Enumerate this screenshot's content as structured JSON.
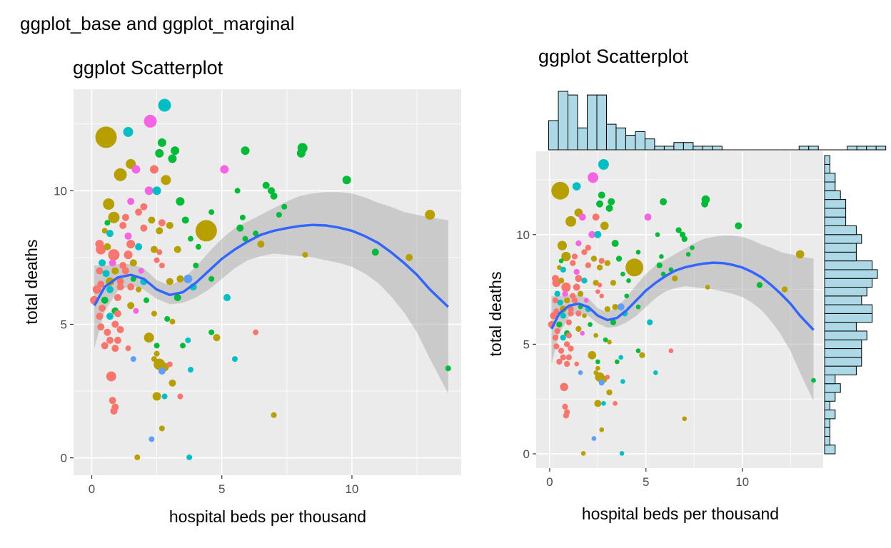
{
  "figure": {
    "title": "ggplot_base and ggplot_marginal"
  },
  "chart_data": [
    {
      "type": "scatter",
      "id": "base",
      "title": "ggplot Scatterplot",
      "xlabel": "hospital beds per thousand",
      "ylabel": "total deaths",
      "xlim": [
        -0.7,
        14.2
      ],
      "ylim": [
        -0.65,
        13.8
      ],
      "xticks": [
        0,
        5,
        10
      ],
      "yticks": [
        0,
        5,
        10
      ],
      "xtick_labels": [
        "0",
        "5",
        "10"
      ],
      "ytick_labels": [
        "0",
        "5",
        "10"
      ],
      "grid": true,
      "smooth": {
        "method": "loess",
        "color": "#3366FF",
        "ci_color": "#bfbfbf"
      }
    },
    {
      "type": "scatter",
      "id": "marginal",
      "title": "ggplot Scatterplot",
      "xlabel": "hospital beds per thousand",
      "ylabel": "total deaths",
      "xlim": [
        -0.7,
        14.2
      ],
      "ylim": [
        -0.65,
        13.8
      ],
      "xticks": [
        0,
        5,
        10
      ],
      "yticks": [
        0,
        5,
        10
      ],
      "xtick_labels": [
        "0",
        "5",
        "10"
      ],
      "ytick_labels": [
        "0",
        "5",
        "10"
      ],
      "grid": true,
      "marginal": "histogram",
      "hist_color": "#add8e6",
      "x_hist": {
        "bin_start": -0.05,
        "bin_width": 0.5,
        "counts": [
          8,
          16,
          15,
          6,
          15,
          15,
          7,
          6,
          4,
          5,
          3,
          1,
          1,
          2,
          2,
          1,
          1,
          1,
          0,
          0,
          0,
          0,
          0,
          0,
          0,
          0,
          1,
          1,
          0,
          0,
          0,
          1,
          1,
          1,
          1
        ]
      },
      "y_hist": {
        "bin_start": 0,
        "bin_width": 0.4,
        "counts": [
          2,
          1,
          1,
          1,
          2,
          1,
          2,
          3,
          2,
          6,
          7,
          7,
          7,
          8,
          6,
          9,
          9,
          7,
          8,
          9,
          10,
          9,
          6,
          6,
          7,
          6,
          4,
          4,
          4,
          3,
          2,
          2,
          1,
          1
        ]
      }
    }
  ],
  "points": [
    {
      "x": 0.55,
      "y": 12.0,
      "c": "#B79F00",
      "s": 15
    },
    {
      "x": 4.4,
      "y": 8.5,
      "c": "#B79F00",
      "s": 15
    },
    {
      "x": 2.8,
      "y": 13.2,
      "c": "#00BFC4",
      "s": 9
    },
    {
      "x": 2.25,
      "y": 12.6,
      "c": "#F564E3",
      "s": 9
    },
    {
      "x": 1.4,
      "y": 12.2,
      "c": "#00BFC4",
      "s": 7
    },
    {
      "x": 1.1,
      "y": 10.6,
      "c": "#B79F00",
      "s": 9
    },
    {
      "x": 0.65,
      "y": 9.5,
      "c": "#B79F00",
      "s": 8
    },
    {
      "x": 0.85,
      "y": 9.0,
      "c": "#B79F00",
      "s": 8
    },
    {
      "x": 13.0,
      "y": 9.1,
      "c": "#B79F00",
      "s": 7
    },
    {
      "x": 1.5,
      "y": 11.0,
      "c": "#B79F00",
      "s": 7
    },
    {
      "x": 1.7,
      "y": 10.8,
      "c": "#F564E3",
      "s": 6
    },
    {
      "x": 2.4,
      "y": 10.8,
      "c": "#F8766D",
      "s": 6
    },
    {
      "x": 2.6,
      "y": 11.4,
      "c": "#00BA38",
      "s": 6
    },
    {
      "x": 2.7,
      "y": 11.8,
      "c": "#00BA38",
      "s": 6
    },
    {
      "x": 3.2,
      "y": 11.5,
      "c": "#00BA38",
      "s": 6
    },
    {
      "x": 3.1,
      "y": 11.2,
      "c": "#00BA38",
      "s": 6
    },
    {
      "x": 2.85,
      "y": 10.4,
      "c": "#B79F00",
      "s": 7
    },
    {
      "x": 2.2,
      "y": 10.0,
      "c": "#F564E3",
      "s": 6
    },
    {
      "x": 2.5,
      "y": 10.0,
      "c": "#00BFC4",
      "s": 6
    },
    {
      "x": 3.4,
      "y": 9.6,
      "c": "#00BA38",
      "s": 6
    },
    {
      "x": 5.1,
      "y": 10.8,
      "c": "#F564E3",
      "s": 6
    },
    {
      "x": 5.9,
      "y": 11.5,
      "c": "#00BA38",
      "s": 6
    },
    {
      "x": 8.1,
      "y": 11.6,
      "c": "#00BA38",
      "s": 7
    },
    {
      "x": 8.05,
      "y": 11.4,
      "c": "#00BA38",
      "s": 6
    },
    {
      "x": 9.8,
      "y": 10.4,
      "c": "#00BA38",
      "s": 6
    },
    {
      "x": 5.6,
      "y": 10.0,
      "c": "#00BA38",
      "s": 4
    },
    {
      "x": 6.7,
      "y": 10.2,
      "c": "#00BA38",
      "s": 5
    },
    {
      "x": 6.9,
      "y": 10.0,
      "c": "#00BA38",
      "s": 5
    },
    {
      "x": 7.0,
      "y": 9.8,
      "c": "#00BA38",
      "s": 5
    },
    {
      "x": 7.4,
      "y": 9.4,
      "c": "#00BA38",
      "s": 4
    },
    {
      "x": 7.2,
      "y": 9.1,
      "c": "#00BA38",
      "s": 4
    },
    {
      "x": 4.6,
      "y": 9.2,
      "c": "#00BA38",
      "s": 4
    },
    {
      "x": 5.8,
      "y": 9.0,
      "c": "#00BA38",
      "s": 4
    },
    {
      "x": 5.7,
      "y": 8.6,
      "c": "#00BA38",
      "s": 5
    },
    {
      "x": 6.5,
      "y": 8.0,
      "c": "#B79F00",
      "s": 5
    },
    {
      "x": 6.3,
      "y": 8.4,
      "c": "#00BA38",
      "s": 4
    },
    {
      "x": 5.9,
      "y": 8.2,
      "c": "#00BA38",
      "s": 4
    },
    {
      "x": 3.8,
      "y": 8.2,
      "c": "#00BA38",
      "s": 4
    },
    {
      "x": 3.6,
      "y": 8.9,
      "c": "#00BA38",
      "s": 5
    },
    {
      "x": 2.3,
      "y": 8.9,
      "c": "#B79F00",
      "s": 5
    },
    {
      "x": 2.0,
      "y": 9.4,
      "c": "#F8766D",
      "s": 5
    },
    {
      "x": 1.5,
      "y": 9.6,
      "c": "#F564E3",
      "s": 5
    },
    {
      "x": 1.8,
      "y": 9.2,
      "c": "#F8766D",
      "s": 5
    },
    {
      "x": 1.3,
      "y": 9.0,
      "c": "#F8766D",
      "s": 5
    },
    {
      "x": 2.7,
      "y": 8.8,
      "c": "#F8766D",
      "s": 5
    },
    {
      "x": 3.0,
      "y": 8.7,
      "c": "#B79F00",
      "s": 5
    },
    {
      "x": 0.6,
      "y": 8.8,
      "c": "#00BA38",
      "s": 4
    },
    {
      "x": 0.5,
      "y": 8.5,
      "c": "#B79F00",
      "s": 4
    },
    {
      "x": 0.7,
      "y": 8.4,
      "c": "#00BFC4",
      "s": 5
    },
    {
      "x": 1.2,
      "y": 8.7,
      "c": "#F8766D",
      "s": 5
    },
    {
      "x": 1.4,
      "y": 8.3,
      "c": "#F564E3",
      "s": 5
    },
    {
      "x": 2.0,
      "y": 8.6,
      "c": "#F8766D",
      "s": 5
    },
    {
      "x": 2.6,
      "y": 8.5,
      "c": "#B79F00",
      "s": 5
    },
    {
      "x": 0.3,
      "y": 8.0,
      "c": "#F8766D",
      "s": 6
    },
    {
      "x": 0.35,
      "y": 7.8,
      "c": "#F8766D",
      "s": 7
    },
    {
      "x": 0.6,
      "y": 7.9,
      "c": "#B79F00",
      "s": 5
    },
    {
      "x": 1.5,
      "y": 8.0,
      "c": "#F8766D",
      "s": 6
    },
    {
      "x": 1.8,
      "y": 7.9,
      "c": "#00BFC4",
      "s": 5
    },
    {
      "x": 2.4,
      "y": 7.8,
      "c": "#B79F00",
      "s": 5
    },
    {
      "x": 2.6,
      "y": 7.7,
      "c": "#F8766D",
      "s": 4
    },
    {
      "x": 3.3,
      "y": 7.8,
      "c": "#B79F00",
      "s": 5
    },
    {
      "x": 4.1,
      "y": 7.9,
      "c": "#00BA38",
      "s": 4
    },
    {
      "x": 0.85,
      "y": 7.6,
      "c": "#F8766D",
      "s": 8
    },
    {
      "x": 1.4,
      "y": 7.6,
      "c": "#F8766D",
      "s": 6
    },
    {
      "x": 0.4,
      "y": 7.3,
      "c": "#00BFC4",
      "s": 5
    },
    {
      "x": 0.8,
      "y": 7.3,
      "c": "#F564E3",
      "s": 5
    },
    {
      "x": 1.2,
      "y": 7.2,
      "c": "#F8766D",
      "s": 5
    },
    {
      "x": 1.6,
      "y": 7.3,
      "c": "#B79F00",
      "s": 5
    },
    {
      "x": 2.5,
      "y": 7.4,
      "c": "#F8766D",
      "s": 4
    },
    {
      "x": 2.7,
      "y": 7.2,
      "c": "#F8766D",
      "s": 4
    },
    {
      "x": 0.3,
      "y": 7.0,
      "c": "#F8766D",
      "s": 5
    },
    {
      "x": 0.55,
      "y": 6.9,
      "c": "#00BFC4",
      "s": 5
    },
    {
      "x": 0.9,
      "y": 7.0,
      "c": "#B79F00",
      "s": 5
    },
    {
      "x": 1.3,
      "y": 7.0,
      "c": "#F8766D",
      "s": 5
    },
    {
      "x": 1.9,
      "y": 7.0,
      "c": "#F564E3",
      "s": 4
    },
    {
      "x": 0.7,
      "y": 6.6,
      "c": "#B79F00",
      "s": 6
    },
    {
      "x": 1.1,
      "y": 6.6,
      "c": "#F8766D",
      "s": 5
    },
    {
      "x": 0.35,
      "y": 6.5,
      "c": "#F8766D",
      "s": 5
    },
    {
      "x": 1.6,
      "y": 6.7,
      "c": "#00BA38",
      "s": 4
    },
    {
      "x": 2.0,
      "y": 6.6,
      "c": "#00BFC4",
      "s": 5
    },
    {
      "x": 3.0,
      "y": 6.6,
      "c": "#B79F00",
      "s": 5
    },
    {
      "x": 3.7,
      "y": 6.7,
      "c": "#619CFF",
      "s": 6
    },
    {
      "x": 3.9,
      "y": 6.4,
      "c": "#00BFC4",
      "s": 5
    },
    {
      "x": 4.6,
      "y": 6.7,
      "c": "#00BA38",
      "s": 4
    },
    {
      "x": 3.4,
      "y": 6.7,
      "c": "#B79F00",
      "s": 5
    },
    {
      "x": 0.2,
      "y": 6.3,
      "c": "#F8766D",
      "s": 6
    },
    {
      "x": 0.7,
      "y": 6.3,
      "c": "#00BFC4",
      "s": 5
    },
    {
      "x": 1.1,
      "y": 6.4,
      "c": "#F8766D",
      "s": 5
    },
    {
      "x": 1.5,
      "y": 6.4,
      "c": "#F8766D",
      "s": 5
    },
    {
      "x": 1.8,
      "y": 6.3,
      "c": "#B79F00",
      "s": 4
    },
    {
      "x": 0.1,
      "y": 5.9,
      "c": "#F8766D",
      "s": 6
    },
    {
      "x": 0.5,
      "y": 5.9,
      "c": "#00BA38",
      "s": 5
    },
    {
      "x": 1.0,
      "y": 6.0,
      "c": "#F8766D",
      "s": 5
    },
    {
      "x": 0.4,
      "y": 5.6,
      "c": "#F8766D",
      "s": 5
    },
    {
      "x": 0.9,
      "y": 5.5,
      "c": "#00BA38",
      "s": 5
    },
    {
      "x": 1.5,
      "y": 5.7,
      "c": "#B79F00",
      "s": 5
    },
    {
      "x": 2.1,
      "y": 5.9,
      "c": "#00BA38",
      "s": 4
    },
    {
      "x": 3.3,
      "y": 6.0,
      "c": "#00BA38",
      "s": 5
    },
    {
      "x": 5.2,
      "y": 6.0,
      "c": "#00BFC4",
      "s": 5
    },
    {
      "x": 0.3,
      "y": 5.3,
      "c": "#F8766D",
      "s": 5
    },
    {
      "x": 0.7,
      "y": 5.3,
      "c": "#00BFC4",
      "s": 5
    },
    {
      "x": 1.0,
      "y": 5.4,
      "c": "#F8766D",
      "s": 5
    },
    {
      "x": 1.7,
      "y": 5.5,
      "c": "#F564E3",
      "s": 4
    },
    {
      "x": 2.4,
      "y": 5.4,
      "c": "#B79F00",
      "s": 4
    },
    {
      "x": 2.9,
      "y": 5.2,
      "c": "#00BA38",
      "s": 4
    },
    {
      "x": 3.1,
      "y": 5.1,
      "c": "#B79F00",
      "s": 4
    },
    {
      "x": 0.35,
      "y": 4.9,
      "c": "#F8766D",
      "s": 5
    },
    {
      "x": 0.9,
      "y": 5.0,
      "c": "#F8766D",
      "s": 5
    },
    {
      "x": 0.6,
      "y": 4.7,
      "c": "#F8766D",
      "s": 5
    },
    {
      "x": 1.1,
      "y": 4.8,
      "c": "#F8766D",
      "s": 5
    },
    {
      "x": 2.2,
      "y": 4.5,
      "c": "#B79F00",
      "s": 7
    },
    {
      "x": 4.6,
      "y": 4.7,
      "c": "#00BA38",
      "s": 4
    },
    {
      "x": 4.8,
      "y": 4.5,
      "c": "#B79F00",
      "s": 5
    },
    {
      "x": 6.3,
      "y": 4.7,
      "c": "#F8766D",
      "s": 4
    },
    {
      "x": 0.7,
      "y": 4.4,
      "c": "#F8766D",
      "s": 5
    },
    {
      "x": 1.0,
      "y": 4.4,
      "c": "#F8766D",
      "s": 5
    },
    {
      "x": 3.7,
      "y": 4.4,
      "c": "#00BFC4",
      "s": 4
    },
    {
      "x": 0.5,
      "y": 4.2,
      "c": "#F8766D",
      "s": 5
    },
    {
      "x": 0.9,
      "y": 4.1,
      "c": "#F8766D",
      "s": 5
    },
    {
      "x": 1.4,
      "y": 4.1,
      "c": "#F8766D",
      "s": 4
    },
    {
      "x": 2.5,
      "y": 4.2,
      "c": "#00BA38",
      "s": 4
    },
    {
      "x": 3.5,
      "y": 4.2,
      "c": "#00BA38",
      "s": 4
    },
    {
      "x": 1.6,
      "y": 3.7,
      "c": "#619CFF",
      "s": 4
    },
    {
      "x": 2.5,
      "y": 3.9,
      "c": "#B79F00",
      "s": 4
    },
    {
      "x": 2.6,
      "y": 3.5,
      "c": "#B79F00",
      "s": 8
    },
    {
      "x": 2.8,
      "y": 3.4,
      "c": "#B79F00",
      "s": 6
    },
    {
      "x": 2.4,
      "y": 3.7,
      "c": "#B79F00",
      "s": 4
    },
    {
      "x": 3.0,
      "y": 3.5,
      "c": "#F8766D",
      "s": 4
    },
    {
      "x": 2.7,
      "y": 3.25,
      "c": "#619CFF",
      "s": 5
    },
    {
      "x": 3.8,
      "y": 3.3,
      "c": "#00BFC4",
      "s": 4
    },
    {
      "x": 5.5,
      "y": 3.7,
      "c": "#00BFC4",
      "s": 4
    },
    {
      "x": 13.7,
      "y": 3.35,
      "c": "#00BA38",
      "s": 4
    },
    {
      "x": 0.75,
      "y": 3.05,
      "c": "#F8766D",
      "s": 7
    },
    {
      "x": 3.1,
      "y": 2.8,
      "c": "#B79F00",
      "s": 5
    },
    {
      "x": 2.5,
      "y": 2.3,
      "c": "#B79F00",
      "s": 6
    },
    {
      "x": 2.8,
      "y": 2.3,
      "c": "#00BFC4",
      "s": 4
    },
    {
      "x": 3.4,
      "y": 2.3,
      "c": "#F8766D",
      "s": 4
    },
    {
      "x": 0.8,
      "y": 2.15,
      "c": "#F8766D",
      "s": 5
    },
    {
      "x": 0.9,
      "y": 1.9,
      "c": "#F8766D",
      "s": 5
    },
    {
      "x": 0.85,
      "y": 1.75,
      "c": "#F8766D",
      "s": 5
    },
    {
      "x": 7.0,
      "y": 1.6,
      "c": "#B79F00",
      "s": 4
    },
    {
      "x": 2.7,
      "y": 1.1,
      "c": "#B79F00",
      "s": 4
    },
    {
      "x": 2.3,
      "y": 0.7,
      "c": "#619CFF",
      "s": 4
    },
    {
      "x": 1.75,
      "y": 0.02,
      "c": "#B79F00",
      "s": 4
    },
    {
      "x": 3.75,
      "y": 0.02,
      "c": "#00BFC4",
      "s": 4
    },
    {
      "x": 10.9,
      "y": 7.7,
      "c": "#00BA38",
      "s": 5
    },
    {
      "x": 12.2,
      "y": 7.5,
      "c": "#B79F00",
      "s": 5
    },
    {
      "x": 8.2,
      "y": 7.6,
      "c": "#B79F00",
      "s": 4
    },
    {
      "x": 4.0,
      "y": 7.2,
      "c": "#00BA38",
      "s": 4
    }
  ],
  "smooth_points": [
    {
      "x": 0.1,
      "y": 5.7,
      "lo": 4.1,
      "hi": 7.2
    },
    {
      "x": 0.5,
      "y": 6.4,
      "lo": 5.5,
      "hi": 7.2
    },
    {
      "x": 1.0,
      "y": 6.75,
      "lo": 6.25,
      "hi": 7.25
    },
    {
      "x": 1.5,
      "y": 6.85,
      "lo": 6.45,
      "hi": 7.25
    },
    {
      "x": 2.0,
      "y": 6.7,
      "lo": 6.3,
      "hi": 7.1
    },
    {
      "x": 2.5,
      "y": 6.3,
      "lo": 5.95,
      "hi": 6.65
    },
    {
      "x": 3.0,
      "y": 6.1,
      "lo": 5.75,
      "hi": 6.45
    },
    {
      "x": 3.5,
      "y": 6.2,
      "lo": 5.8,
      "hi": 6.7
    },
    {
      "x": 4.0,
      "y": 6.55,
      "lo": 6.0,
      "hi": 7.15
    },
    {
      "x": 4.5,
      "y": 7.0,
      "lo": 6.3,
      "hi": 7.7
    },
    {
      "x": 5.0,
      "y": 7.45,
      "lo": 6.7,
      "hi": 8.2
    },
    {
      "x": 5.5,
      "y": 7.8,
      "lo": 7.1,
      "hi": 8.6
    },
    {
      "x": 6.0,
      "y": 8.1,
      "lo": 7.4,
      "hi": 8.85
    },
    {
      "x": 6.5,
      "y": 8.35,
      "lo": 7.55,
      "hi": 9.1
    },
    {
      "x": 7.0,
      "y": 8.5,
      "lo": 7.65,
      "hi": 9.35
    },
    {
      "x": 7.5,
      "y": 8.6,
      "lo": 7.6,
      "hi": 9.6
    },
    {
      "x": 8.0,
      "y": 8.68,
      "lo": 7.55,
      "hi": 9.8
    },
    {
      "x": 8.5,
      "y": 8.72,
      "lo": 7.5,
      "hi": 9.9
    },
    {
      "x": 9.0,
      "y": 8.7,
      "lo": 7.4,
      "hi": 9.95
    },
    {
      "x": 9.5,
      "y": 8.62,
      "lo": 7.3,
      "hi": 9.95
    },
    {
      "x": 10.0,
      "y": 8.5,
      "lo": 7.15,
      "hi": 9.9
    },
    {
      "x": 10.5,
      "y": 8.3,
      "lo": 6.9,
      "hi": 9.75
    },
    {
      "x": 11.0,
      "y": 8.05,
      "lo": 6.55,
      "hi": 9.55
    },
    {
      "x": 11.5,
      "y": 7.7,
      "lo": 6.05,
      "hi": 9.4
    },
    {
      "x": 12.0,
      "y": 7.3,
      "lo": 5.45,
      "hi": 9.2
    },
    {
      "x": 12.5,
      "y": 6.85,
      "lo": 4.7,
      "hi": 9.1
    },
    {
      "x": 13.0,
      "y": 6.3,
      "lo": 3.7,
      "hi": 9.0
    },
    {
      "x": 13.7,
      "y": 5.65,
      "lo": 2.4,
      "hi": 8.9
    }
  ]
}
